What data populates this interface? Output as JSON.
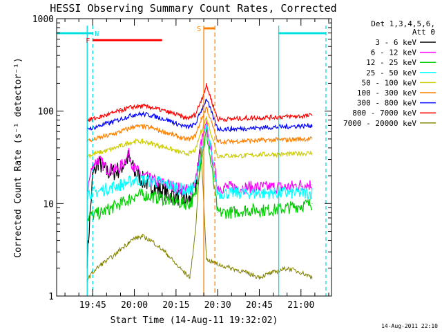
{
  "chart_data": {
    "type": "line",
    "title": "HESSI Observing Summary Count Rates, Corrected",
    "xlabel": "Start Time (14-Aug-11 19:32:02)",
    "ylabel": "Corrected Count Rate (s⁻¹ detector⁻¹)",
    "y_scale": "log",
    "ylim": [
      1,
      1000
    ],
    "xlim": [
      "19:32",
      "21:11"
    ],
    "x_ticks": [
      "19:45",
      "20:00",
      "20:15",
      "20:30",
      "20:45",
      "21:00"
    ],
    "y_ticks": [
      "1",
      "10",
      "100",
      "1000"
    ],
    "legend_header": [
      "Det 1,3,4,5,6,",
      "Att 0"
    ],
    "legend_position": "right",
    "footer": "14-Aug-2011 22:10",
    "series": [
      {
        "name": "3 - 6 keV",
        "color": "#000000",
        "x": [
          "19:43",
          "19:45",
          "19:47",
          "19:50",
          "19:53",
          "19:55",
          "19:58",
          "20:00",
          "20:03",
          "20:06",
          "20:09",
          "20:12",
          "20:15",
          "20:18",
          "20:20",
          "20:22",
          "20:24"
        ],
        "y": [
          2.5,
          20,
          28,
          22,
          22,
          24,
          32,
          22,
          18,
          16,
          14,
          13,
          12,
          11,
          11,
          15,
          40
        ]
      },
      {
        "name": "6 - 12 keV",
        "color": "#ff00ff",
        "x": [
          "19:43",
          "19:45",
          "19:47",
          "19:50",
          "19:53",
          "19:55",
          "19:58",
          "20:00",
          "20:03",
          "20:06",
          "20:09",
          "20:12",
          "20:15",
          "20:18",
          "20:20",
          "20:22",
          "20:24",
          "20:26",
          "20:30",
          "20:35",
          "20:40",
          "20:45",
          "20:50",
          "20:55",
          "21:00",
          "21:04"
        ],
        "y": [
          14,
          26,
          30,
          24,
          23,
          25,
          34,
          24,
          20,
          18,
          17,
          16,
          15,
          14,
          14,
          17,
          45,
          70,
          15,
          15,
          15,
          15,
          15,
          15,
          16,
          16
        ]
      },
      {
        "name": "12 - 25 keV",
        "color": "#00cc00",
        "x": [
          "19:43",
          "19:45",
          "19:48",
          "19:52",
          "19:55",
          "19:58",
          "20:00",
          "20:03",
          "20:06",
          "20:09",
          "20:12",
          "20:15",
          "20:18",
          "20:20",
          "20:22",
          "20:24",
          "20:26",
          "20:30",
          "20:35",
          "20:40",
          "20:45",
          "20:50",
          "20:55",
          "21:00",
          "21:04"
        ],
        "y": [
          7,
          7.5,
          8,
          9,
          10,
          11,
          12,
          12.5,
          12,
          11.5,
          11,
          10.5,
          10,
          10,
          12,
          30,
          60,
          8,
          8,
          8.5,
          8.5,
          8.5,
          9,
          9.5,
          10
        ]
      },
      {
        "name": "25 - 50 keV",
        "color": "#00ffff",
        "x": [
          "19:43",
          "19:45",
          "19:48",
          "19:52",
          "19:55",
          "19:58",
          "20:00",
          "20:03",
          "20:06",
          "20:09",
          "20:12",
          "20:15",
          "20:18",
          "20:20",
          "20:22",
          "20:24",
          "20:26",
          "20:30",
          "20:35",
          "20:40",
          "20:45",
          "20:50",
          "20:55",
          "21:00",
          "21:04"
        ],
        "y": [
          13,
          13,
          14,
          15,
          16,
          17,
          18,
          18,
          17.5,
          17,
          16,
          15,
          14,
          14,
          16,
          35,
          70,
          13,
          13,
          13,
          13,
          13,
          13,
          13,
          13
        ]
      },
      {
        "name": "50 - 100 keV",
        "color": "#cccc00",
        "x": [
          "19:43",
          "19:45",
          "19:48",
          "19:52",
          "19:55",
          "19:58",
          "20:00",
          "20:03",
          "20:06",
          "20:09",
          "20:12",
          "20:15",
          "20:18",
          "20:20",
          "20:22",
          "20:24",
          "20:26",
          "20:30",
          "20:35",
          "20:40",
          "20:45",
          "20:50",
          "20:55",
          "21:00",
          "21:04"
        ],
        "y": [
          33,
          34,
          36,
          39,
          42,
          45,
          47,
          47,
          45,
          42,
          40,
          37,
          35,
          35,
          38,
          60,
          85,
          33,
          33,
          33,
          34,
          34,
          34,
          35,
          35
        ]
      },
      {
        "name": "100 - 300 keV",
        "color": "#ff8000",
        "x": [
          "19:43",
          "19:45",
          "19:48",
          "19:52",
          "19:55",
          "19:58",
          "20:00",
          "20:03",
          "20:06",
          "20:09",
          "20:12",
          "20:15",
          "20:18",
          "20:20",
          "20:22",
          "20:24",
          "20:26",
          "20:30",
          "20:35",
          "20:40",
          "20:45",
          "20:50",
          "20:55",
          "21:00",
          "21:04"
        ],
        "y": [
          48,
          49,
          52,
          56,
          60,
          65,
          68,
          68,
          66,
          62,
          58,
          54,
          50,
          50,
          54,
          80,
          110,
          47,
          47,
          48,
          48,
          49,
          49,
          50,
          50
        ]
      },
      {
        "name": "300 - 800 keV",
        "color": "#0000ff",
        "x": [
          "19:43",
          "19:45",
          "19:48",
          "19:52",
          "19:55",
          "19:58",
          "20:00",
          "20:03",
          "20:06",
          "20:09",
          "20:12",
          "20:15",
          "20:18",
          "20:20",
          "20:22",
          "20:24",
          "20:26",
          "20:30",
          "20:35",
          "20:40",
          "20:45",
          "20:50",
          "20:55",
          "21:00",
          "21:04"
        ],
        "y": [
          65,
          66,
          70,
          76,
          82,
          88,
          92,
          93,
          90,
          85,
          80,
          74,
          68,
          68,
          72,
          100,
          135,
          64,
          64,
          65,
          66,
          67,
          68,
          69,
          70
        ]
      },
      {
        "name": "800 - 7000 keV",
        "color": "#ff0000",
        "x": [
          "19:43",
          "19:45",
          "19:48",
          "19:52",
          "19:55",
          "19:58",
          "20:00",
          "20:03",
          "20:06",
          "20:09",
          "20:12",
          "20:15",
          "20:18",
          "20:20",
          "20:22",
          "20:24",
          "20:26",
          "20:30",
          "20:35",
          "20:40",
          "20:45",
          "20:50",
          "20:55",
          "21:00",
          "21:04"
        ],
        "y": [
          80,
          82,
          87,
          95,
          102,
          108,
          112,
          113,
          110,
          104,
          98,
          92,
          85,
          85,
          92,
          130,
          190,
          82,
          82,
          84,
          85,
          86,
          87,
          88,
          90
        ]
      },
      {
        "name": "7000 - 20000 keV",
        "color": "#808000",
        "x": [
          "19:43",
          "19:45",
          "19:48",
          "19:50",
          "19:53",
          "19:55",
          "19:58",
          "20:00",
          "20:03",
          "20:06",
          "20:09",
          "20:12",
          "20:15",
          "20:18",
          "20:20",
          "20:22",
          "20:24",
          "20:26",
          "20:30",
          "20:35",
          "20:40",
          "20:45",
          "20:50",
          "20:55",
          "21:00",
          "21:04"
        ],
        "y": [
          1.5,
          1.8,
          2.2,
          2.4,
          2.8,
          3.2,
          3.8,
          4.2,
          4.4,
          4.0,
          3.4,
          2.8,
          2.2,
          1.8,
          1.6,
          5,
          40,
          2.5,
          2.2,
          2.0,
          1.8,
          1.6,
          1.8,
          2.0,
          1.8,
          1.6
        ]
      }
    ],
    "flags": [
      {
        "label": "N",
        "color": "#00e0e0",
        "start": "19:32",
        "end": "19:45"
      },
      {
        "label": "F",
        "color": "#ff0000",
        "start": "19:45",
        "end": "20:10"
      },
      {
        "label": "S",
        "color": "#ff8000",
        "start": "20:25",
        "end": "20:29"
      },
      {
        "label": "",
        "color": "#00e0e0",
        "start": "20:52",
        "end": "21:09"
      }
    ],
    "intervals": [
      {
        "color": "#00e0e0",
        "start": "19:43",
        "end": "20:52"
      },
      {
        "color": "#00e0e0",
        "start": "19:45",
        "end": "21:09"
      },
      {
        "color": "#ff8000",
        "start": "20:25",
        "end": "20:29"
      }
    ]
  }
}
